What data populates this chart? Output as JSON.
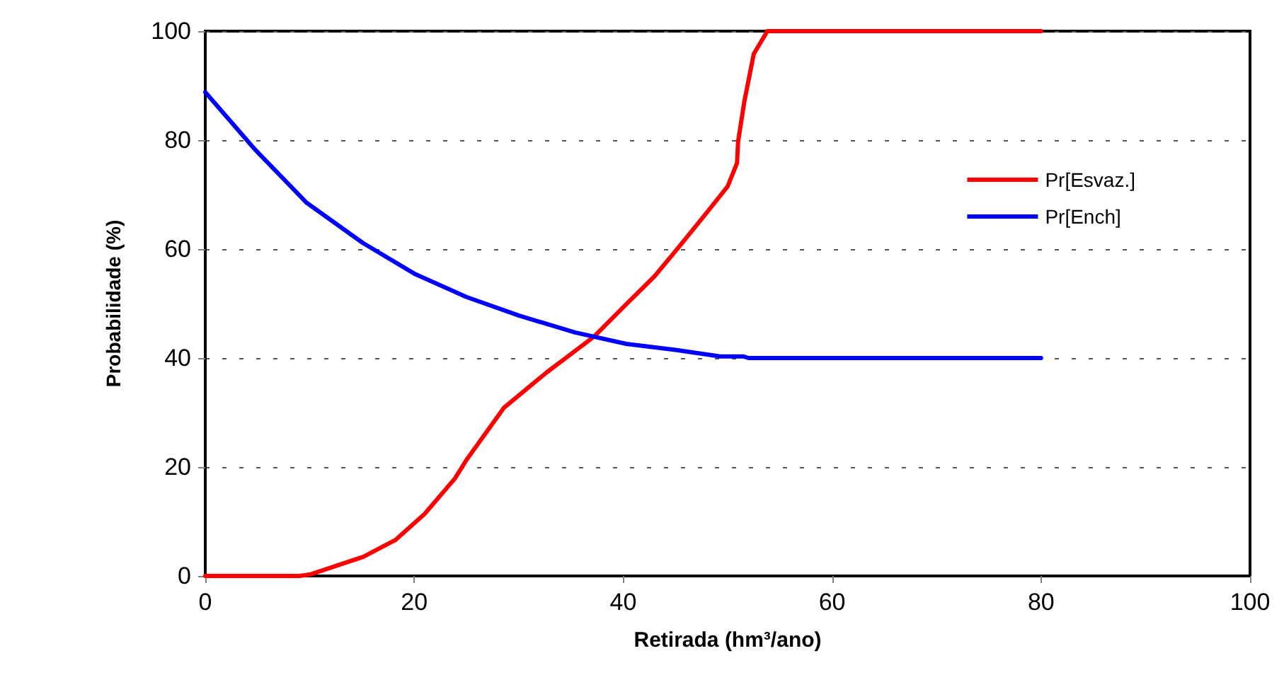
{
  "chart_data": {
    "type": "line",
    "xlabel": "Retirada (hm³/ano)",
    "ylabel": "Probabilidade (%)",
    "xlim": [
      0,
      100
    ],
    "xticks": [
      0,
      20,
      40,
      60,
      80,
      100
    ],
    "ylim": [
      0,
      100
    ],
    "yticks": [
      0,
      20,
      40,
      60,
      80,
      100
    ],
    "grid": "y",
    "legend": "top right",
    "marker": "none",
    "line_style": "solid",
    "series": [
      {
        "name": "Pr[Esvaz.]",
        "color": "#ff0000",
        "x": [
          0,
          3,
          6,
          9,
          10.1,
          15.1,
          18.2,
          21,
          23.9,
          25,
          28.6,
          32.7,
          37.2,
          40.3,
          43,
          45.3,
          47.5,
          50,
          50.9,
          51,
          51.6,
          52.5,
          53.8,
          60,
          70,
          80
        ],
        "values": [
          0,
          0,
          0,
          0,
          0.3,
          3.5,
          6.6,
          11.4,
          17.9,
          21.3,
          30.9,
          37.4,
          43.9,
          49.9,
          55,
          60.3,
          65.5,
          71.5,
          75.8,
          79.7,
          87.1,
          95.8,
          100,
          100,
          100,
          100
        ]
      },
      {
        "name": "Pr[Ench]",
        "color": "#0000ff",
        "x": [
          0,
          4.7,
          9.7,
          15.1,
          20,
          25,
          30,
          35.4,
          40.3,
          45,
          49.3,
          51.5,
          52,
          60,
          70,
          80
        ],
        "values": [
          88.8,
          78.4,
          68.5,
          61.1,
          55.5,
          51.2,
          47.8,
          44.7,
          42.6,
          41.5,
          40.3,
          40.3,
          40,
          40,
          40,
          40
        ]
      }
    ]
  }
}
